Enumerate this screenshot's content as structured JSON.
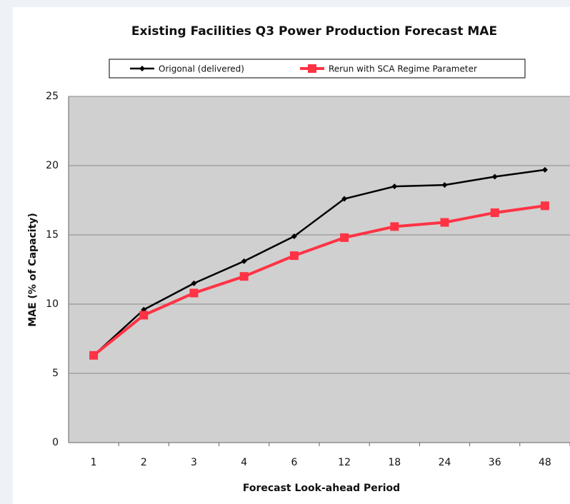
{
  "chart_data": {
    "type": "line",
    "title": "Existing Facilities Q3 Power Production Forecast MAE",
    "x_label": "Forecast Look-ahead Period",
    "y_label": "MAE (% of Capacity)",
    "categories": [
      "1",
      "2",
      "3",
      "4",
      "6",
      "12",
      "18",
      "24",
      "36",
      "48"
    ],
    "series": [
      {
        "name": "Origonal (delivered)",
        "color": "#000000",
        "marker": "diamond",
        "values": [
          6.3,
          9.6,
          11.5,
          13.1,
          14.9,
          17.6,
          18.5,
          18.6,
          19.2,
          19.7
        ]
      },
      {
        "name": "Rerun with SCA Regime Parameter",
        "color": "#ff3344",
        "marker": "square",
        "values": [
          6.3,
          9.2,
          10.8,
          12.0,
          13.5,
          14.8,
          15.6,
          15.9,
          16.6,
          17.1
        ]
      }
    ],
    "ylim": [
      0,
      25
    ],
    "yticks": [
      0,
      5,
      10,
      15,
      20,
      25
    ],
    "grid": true,
    "legend": "top"
  }
}
